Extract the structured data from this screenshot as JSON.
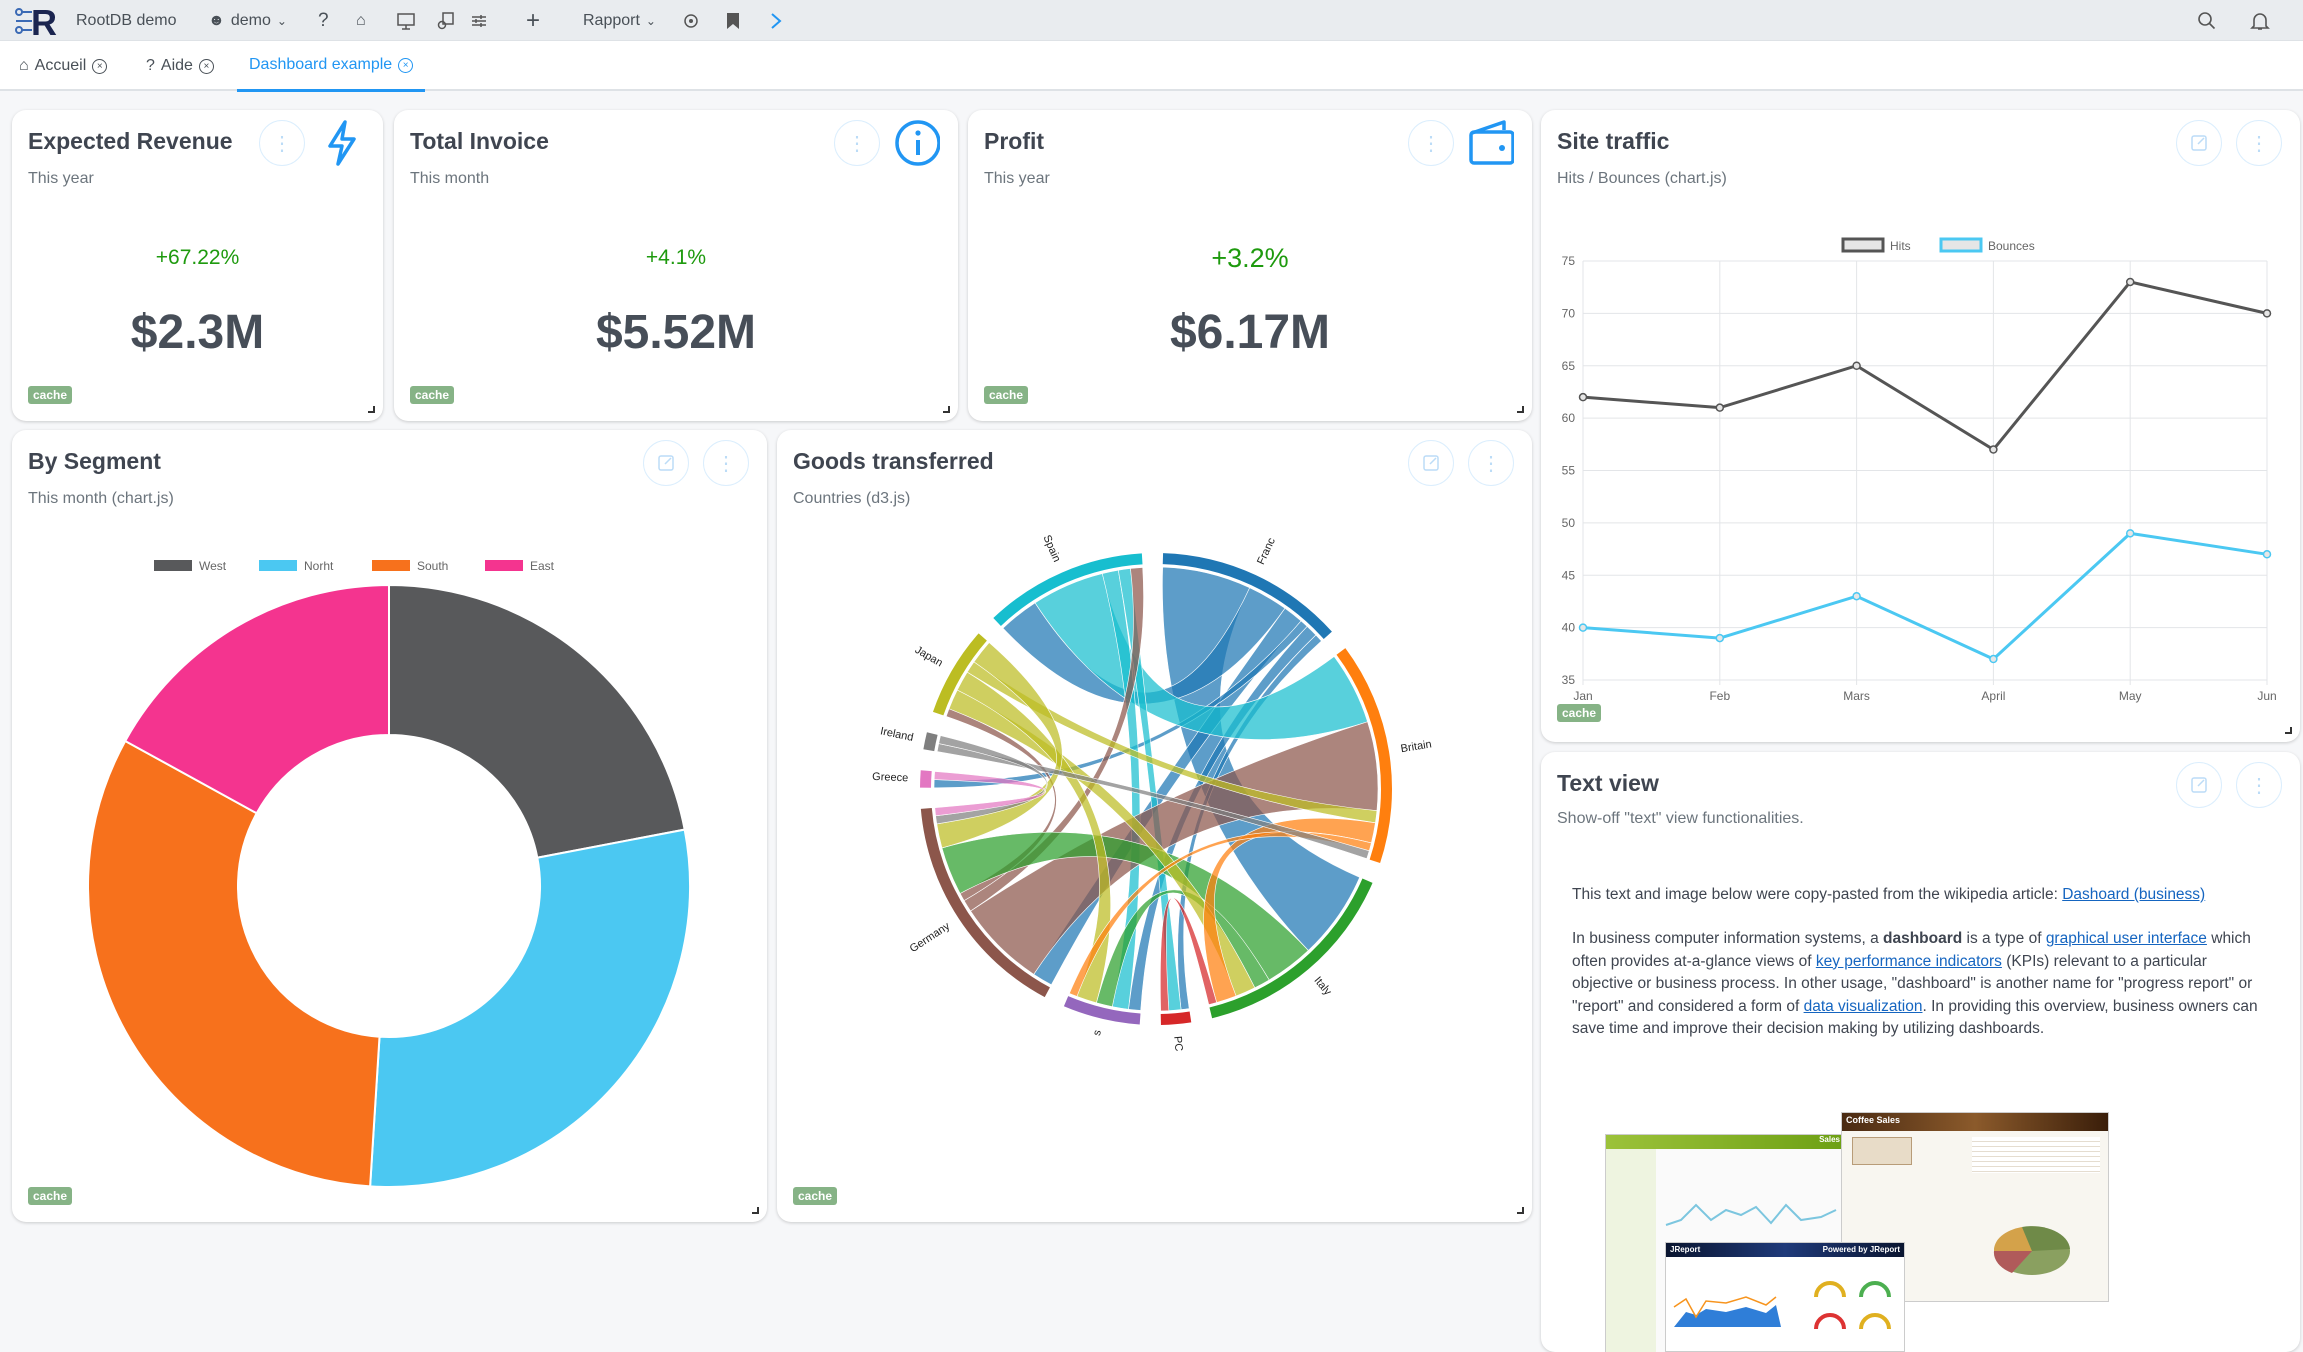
{
  "header": {
    "app_name": "RootDB demo",
    "user": "demo",
    "report_menu": "Rapport"
  },
  "tabs": [
    {
      "label": "Accueil"
    },
    {
      "label": "Aide"
    },
    {
      "label": "Dashboard example"
    }
  ],
  "cards": {
    "expected_revenue": {
      "title": "Expected Revenue",
      "subtitle": "This year",
      "change": "+67.22%",
      "value": "$2.3M",
      "badge": "cache"
    },
    "total_invoice": {
      "title": "Total Invoice",
      "subtitle": "This month",
      "change": "+4.1%",
      "value": "$5.52M",
      "badge": "cache"
    },
    "profit": {
      "title": "Profit",
      "subtitle": "This year",
      "change": "+3.2%",
      "value": "$6.17M",
      "badge": "cache"
    },
    "site_traffic": {
      "title": "Site traffic",
      "subtitle": "Hits / Bounces (chart.js)",
      "badge": "cache"
    },
    "by_segment": {
      "title": "By Segment",
      "subtitle": "This month (chart.js)",
      "badge": "cache"
    },
    "goods": {
      "title": "Goods transferred",
      "subtitle": "Countries (d3.js)",
      "badge": "cache"
    },
    "text_view": {
      "title": "Text view",
      "subtitle": "Show-off \"text\" view functionalities.",
      "p1": "This text and image below were copy-pasted from the wikipedia article: ",
      "p1_link": "Dashoard (business)",
      "p2": [
        "In business computer information systems, a ",
        "dashboard",
        " is a type of ",
        "graphical user interface",
        " which often provides at-a-glance views of ",
        "key performance indicators",
        " (KPIs) relevant to a particular objective or business process. In other usage, \"dashboard\" is another name for \"progress report\" or \"report\" and considered a form of ",
        "data visualization",
        ". In providing this overview, business owners can save time and improve their decision making by utilizing dashboards."
      ],
      "image_labels": {
        "coffee": "Coffee Sales",
        "jreport": "JReport",
        "powered": "Powered by JReport",
        "sales": "Sales"
      }
    }
  },
  "colors": {
    "accent": "#2196f3",
    "positive": "#1e9a0e",
    "cache": "#86b386"
  },
  "chart_data": [
    {
      "type": "line",
      "title": "Site traffic",
      "categories": [
        "Jan",
        "Feb",
        "Mars",
        "April",
        "May",
        "Jun"
      ],
      "series": [
        {
          "name": "Hits",
          "color": "#555555",
          "values": [
            62,
            61,
            65,
            57,
            73,
            70
          ]
        },
        {
          "name": "Bounces",
          "color": "#4bc8f2",
          "values": [
            40,
            39,
            43,
            37,
            49,
            47
          ]
        }
      ],
      "ylim": [
        35,
        75
      ],
      "yticks": [
        35,
        40,
        45,
        50,
        55,
        60,
        65,
        70,
        75
      ],
      "legend": "top",
      "grid": true
    },
    {
      "type": "pie",
      "title": "By Segment",
      "categories": [
        "West",
        "Norht",
        "South",
        "East"
      ],
      "values": [
        22,
        29,
        32,
        17
      ],
      "colors": [
        "#58595b",
        "#4bc8f2",
        "#f7711c",
        "#f4348f"
      ],
      "legend": "top",
      "donut": true
    },
    {
      "type": "chord",
      "title": "Goods transferred",
      "groups": [
        {
          "name": "Franc",
          "color": "#1f77b4"
        },
        {
          "name": "Britain",
          "color": "#ff7f0e"
        },
        {
          "name": "Italy",
          "color": "#2ca02c"
        },
        {
          "name": "PC",
          "color": "#d62728"
        },
        {
          "name": "s",
          "color": "#9467bd"
        },
        {
          "name": "Germany",
          "color": "#8c564b"
        },
        {
          "name": "Greece",
          "color": "#e377c2"
        },
        {
          "name": "Ireland",
          "color": "#7f7f7f"
        },
        {
          "name": "Japan",
          "color": "#bcbd22"
        },
        {
          "name": "Spain",
          "color": "#17becf"
        }
      ],
      "flows": [
        [
          "Franc",
          "Italy",
          22
        ],
        [
          "Franc",
          "Spain",
          10
        ],
        [
          "Franc",
          "Germany",
          5
        ],
        [
          "Franc",
          "Greece",
          2
        ],
        [
          "Franc",
          "s",
          3
        ],
        [
          "Franc",
          "PC",
          2
        ],
        [
          "Spain",
          "Britain",
          18
        ],
        [
          "Spain",
          "s",
          4
        ],
        [
          "Spain",
          "PC",
          3
        ],
        [
          "Germany",
          "Britain",
          22
        ],
        [
          "Germany",
          "Spain",
          3
        ],
        [
          "Germany",
          "Japan",
          2
        ],
        [
          "Italy",
          "Germany",
          12
        ],
        [
          "Italy",
          "s",
          4
        ],
        [
          "Japan",
          "Italy",
          5
        ],
        [
          "Japan",
          "s",
          5
        ],
        [
          "Japan",
          "Britain",
          3
        ],
        [
          "Japan",
          "Germany",
          6
        ],
        [
          "Britain",
          "Italy",
          5
        ],
        [
          "Britain",
          "s",
          2
        ],
        [
          "PC",
          "Italy",
          2
        ],
        [
          "Ireland",
          "Britain",
          2
        ],
        [
          "Ireland",
          "Germany",
          2
        ],
        [
          "Greece",
          "Germany",
          2
        ]
      ]
    }
  ]
}
